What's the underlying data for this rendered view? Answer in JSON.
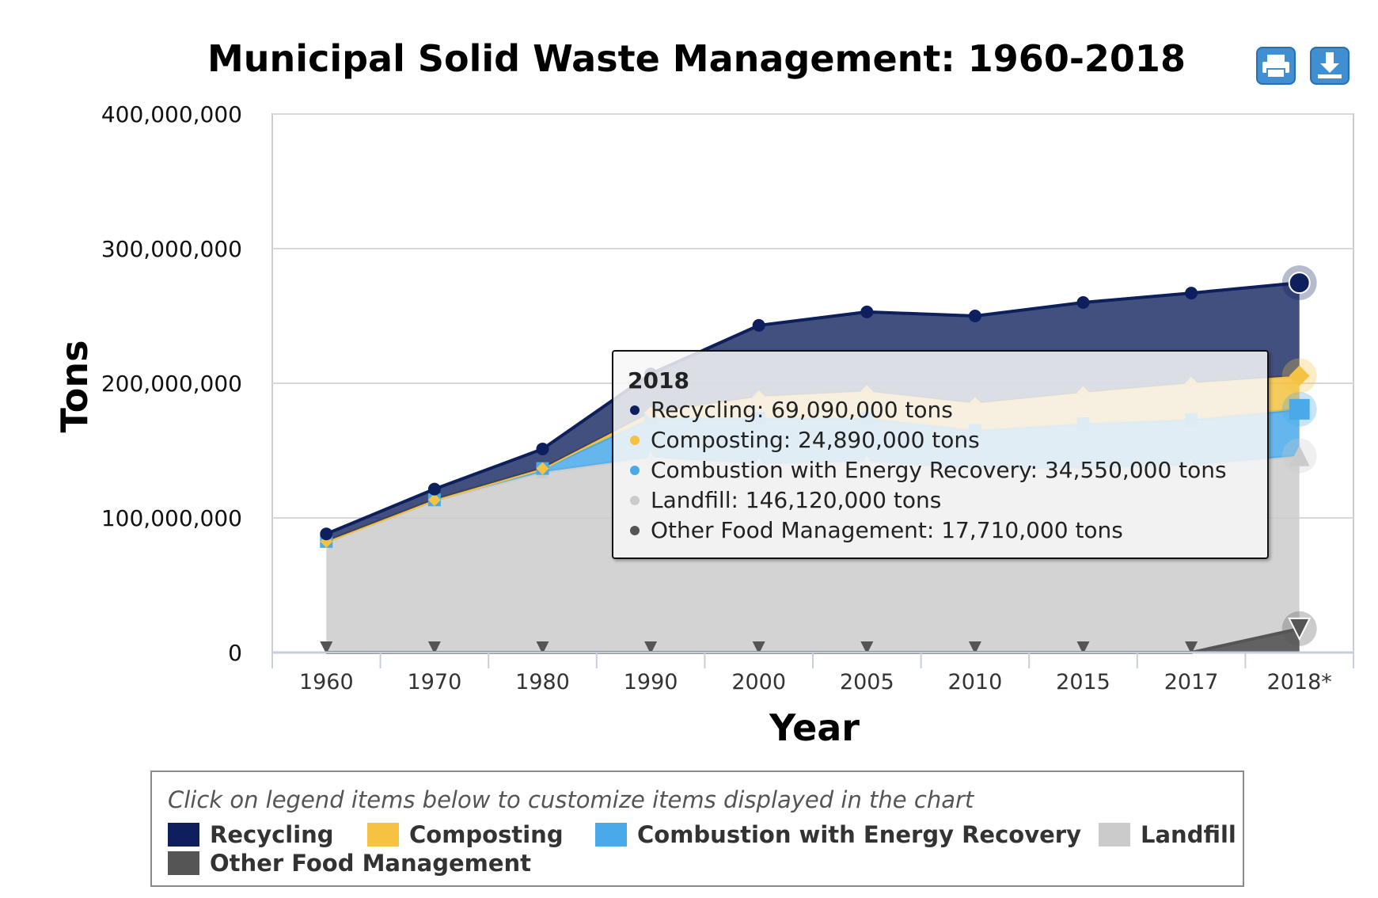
{
  "chart_data": {
    "type": "area",
    "title": "Municipal Solid Waste Management: 1960-2018",
    "xlabel": "Year",
    "ylabel": "Tons",
    "ylim": [
      0,
      400000000
    ],
    "y_ticks": [
      "0",
      "100,000,000",
      "200,000,000",
      "300,000,000",
      "400,000,000"
    ],
    "y_tick_values": [
      0,
      100000000,
      200000000,
      300000000,
      400000000
    ],
    "categories": [
      "1960",
      "1970",
      "1980",
      "1990",
      "2000",
      "2005",
      "2010",
      "2015",
      "2017",
      "2018*"
    ],
    "stacked": true,
    "grid": "horizontal",
    "series": [
      {
        "name": "Recycling",
        "color": "#0d1f5c",
        "marker": "circle",
        "values": [
          5600000,
          8000000,
          14500000,
          29000000,
          53000000,
          59000000,
          65000000,
          67000000,
          67000000,
          69090000
        ]
      },
      {
        "name": "Composting",
        "color": "#f5c242",
        "marker": "diamond",
        "values": [
          0,
          0,
          0,
          4000000,
          16000000,
          20000000,
          20000000,
          23000000,
          27000000,
          24890000
        ]
      },
      {
        "name": "Combustion with Energy Recovery",
        "color": "#4aa9e9",
        "marker": "square",
        "values": [
          0,
          400000,
          2700000,
          29000000,
          34000000,
          32000000,
          29000000,
          33000000,
          34000000,
          34550000
        ]
      },
      {
        "name": "Landfill",
        "color": "#cbcbcb",
        "marker": "triangle",
        "values": [
          82500000,
          113000000,
          134000000,
          145000000,
          140000000,
          142000000,
          136000000,
          137000000,
          139000000,
          146120000
        ]
      },
      {
        "name": "Other Food Management",
        "color": "#555555",
        "marker": "triangle-down",
        "values": [
          0,
          0,
          0,
          0,
          0,
          0,
          0,
          0,
          0,
          17710000
        ]
      }
    ],
    "tooltip": {
      "header": "2018",
      "rows": [
        {
          "text": "Recycling: 69,090,000 tons",
          "color": "#0d1f5c"
        },
        {
          "text": "Composting: 24,890,000 tons",
          "color": "#f5c242"
        },
        {
          "text": "Combustion with Energy Recovery: 34,550,000 tons",
          "color": "#4aa9e9"
        },
        {
          "text": "Landfill: 146,120,000 tons",
          "color": "#cbcbcb"
        },
        {
          "text": "Other Food Management: 17,710,000 tons",
          "color": "#555555"
        }
      ]
    },
    "legend": {
      "title": "Click on legend items below to customize items displayed in the chart",
      "placement": "bottom"
    }
  },
  "toolbar": {
    "print_icon": "print-icon",
    "download_icon": "download-icon"
  }
}
